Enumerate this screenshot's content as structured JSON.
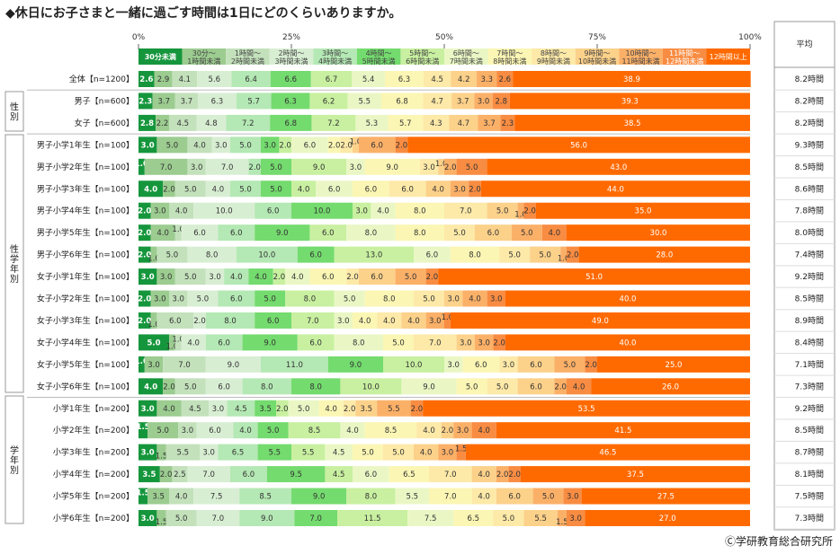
{
  "title": "◆休日にお子さまと一緒に過ごす時間は1日にどのくらいありますか。",
  "copyright": "Ⓒ学研教育総合研究所",
  "chart_data": {
    "type": "bar",
    "stacked": true,
    "orientation": "horizontal",
    "percent_axis_ticks": [
      "0%",
      "25%",
      "50%",
      "75%",
      "100%"
    ],
    "average_header": "平均",
    "categories_legend": [
      "30分未満",
      "30分～1時間未満",
      "1時間～2時間未満",
      "2時間～3時間未満",
      "3時間～4時間未満",
      "4時間～5時間未満",
      "5時間～6時間未満",
      "6時間～7時間未満",
      "7時間～8時間未満",
      "8時間～9時間未満",
      "9時間～10時間未満",
      "10時間～11時間未満",
      "11時間～12時間未満",
      "12時間以上"
    ],
    "legend_lines": [
      [
        "30分未満"
      ],
      [
        "30分～",
        "1時間未満"
      ],
      [
        "1時間～",
        "2時間未満"
      ],
      [
        "2時間～",
        "3時間未満"
      ],
      [
        "3時間～",
        "4時間未満"
      ],
      [
        "4時間～",
        "5時間未満"
      ],
      [
        "5時間～",
        "6時間未満"
      ],
      [
        "6時間～",
        "7時間未満"
      ],
      [
        "7時間～",
        "8時間未満"
      ],
      [
        "8時間～",
        "9時間未満"
      ],
      [
        "9時間～",
        "10時間未満"
      ],
      [
        "10時間～",
        "11時間未満"
      ],
      [
        "11時間～",
        "12時間未満"
      ],
      [
        "12時間以上"
      ]
    ],
    "colors": [
      "#16963c",
      "#9ccc90",
      "#c3e1bb",
      "#d8eed3",
      "#b4e8b4",
      "#74db6e",
      "#c8f0a0",
      "#eaf7c5",
      "#fbf6b4",
      "#fde9a8",
      "#fcd18a",
      "#fbb068",
      "#f88c42",
      "#ff6a00"
    ],
    "groups": [
      {
        "label": "",
        "rows": [
          {
            "label": "全体【n=1200】",
            "values": [
              2.6,
              2.9,
              4.1,
              5.6,
              6.4,
              6.6,
              6.7,
              5.4,
              6.3,
              4.5,
              4.2,
              3.3,
              2.6,
              38.9
            ],
            "avg": "8.2時間"
          }
        ]
      },
      {
        "label": "性別",
        "rows": [
          {
            "label": "男子【n=600】",
            "values": [
              2.3,
              3.7,
              3.7,
              6.3,
              5.7,
              6.3,
              6.2,
              5.5,
              6.8,
              4.7,
              3.7,
              3.0,
              2.8,
              39.3
            ],
            "avg": "8.2時間"
          },
          {
            "label": "女子【n=600】",
            "values": [
              2.8,
              2.2,
              4.5,
              4.8,
              7.2,
              6.8,
              7.2,
              5.3,
              5.7,
              4.3,
              4.7,
              3.7,
              2.3,
              38.5
            ],
            "avg": "8.2時間"
          }
        ]
      },
      {
        "label": "性学年別",
        "rows": [
          {
            "label": "男子小学1年生【n=100】",
            "values": [
              3.0,
              5.0,
              4.0,
              3.0,
              5.0,
              3.0,
              2.0,
              6.0,
              2.0,
              2.0,
              1.0,
              6.0,
              2.0,
              56.0
            ],
            "avg": "9.3時間"
          },
          {
            "label": "男子小学2年生【n=100】",
            "values": [
              1.0,
              7.0,
              3.0,
              7.0,
              2.0,
              5.0,
              9.0,
              3.0,
              9.0,
              3.0,
              1.0,
              2.0,
              5.0,
              43.0
            ],
            "avg": "8.5時間"
          },
          {
            "label": "男子小学3年生【n=100】",
            "values": [
              4.0,
              2.0,
              5.0,
              4.0,
              5.0,
              5.0,
              4.0,
              6.0,
              6.0,
              6.0,
              4.0,
              3.0,
              2.0,
              44.0
            ],
            "avg": "8.6時間"
          },
          {
            "label": "男子小学4年生【n=100】",
            "values": [
              2.0,
              3.0,
              4.0,
              10.0,
              6.0,
              10.0,
              3.0,
              4.0,
              8.0,
              7.0,
              5.0,
              1.0,
              2.0,
              35.0
            ],
            "avg": "7.8時間"
          },
          {
            "label": "男子小学5年生【n=100】",
            "values": [
              2.0,
              4.0,
              1.0,
              6.0,
              6.0,
              9.0,
              6.0,
              8.0,
              8.0,
              5.0,
              6.0,
              5.0,
              4.0,
              30.0
            ],
            "avg": "8.0時間"
          },
          {
            "label": "男子小学6年生【n=100】",
            "values": [
              2.0,
              1.0,
              5.0,
              8.0,
              10.0,
              6.0,
              13.0,
              6.0,
              8.0,
              5.0,
              5.0,
              1.0,
              2.0,
              28.0
            ],
            "avg": "7.4時間"
          },
          {
            "label": "女子小学1年生【n=100】",
            "values": [
              3.0,
              3.0,
              5.0,
              3.0,
              4.0,
              4.0,
              2.0,
              4.0,
              6.0,
              2.0,
              6.0,
              5.0,
              2.0,
              51.0
            ],
            "avg": "9.2時間"
          },
          {
            "label": "女子小学2年生【n=100】",
            "values": [
              2.0,
              3.0,
              3.0,
              5.0,
              6.0,
              5.0,
              8.0,
              5.0,
              8.0,
              5.0,
              3.0,
              4.0,
              3.0,
              40.0
            ],
            "avg": "8.5時間"
          },
          {
            "label": "女子小学3年生【n=100】",
            "values": [
              2.0,
              1.0,
              6.0,
              2.0,
              8.0,
              6.0,
              7.0,
              3.0,
              4.0,
              4.0,
              4.0,
              3.0,
              1.0,
              49.0
            ],
            "avg": "8.9時間"
          },
          {
            "label": "女子小学4年生【n=100】",
            "values": [
              5.0,
              1.0,
              1.0,
              4.0,
              6.0,
              9.0,
              6.0,
              8.0,
              5.0,
              7.0,
              3.0,
              3.0,
              2.0,
              40.0
            ],
            "avg": "8.4時間"
          },
          {
            "label": "女子小学5年生【n=100】",
            "values": [
              1.0,
              3.0,
              7.0,
              9.0,
              11.0,
              9.0,
              10.0,
              3.0,
              6.0,
              3.0,
              6.0,
              5.0,
              2.0,
              25.0
            ],
            "avg": "7.1時間"
          },
          {
            "label": "女子小学6年生【n=100】",
            "values": [
              4.0,
              2.0,
              5.0,
              6.0,
              8.0,
              8.0,
              10.0,
              9.0,
              5.0,
              5.0,
              6.0,
              2.0,
              4.0,
              26.0
            ],
            "avg": "7.3時間"
          }
        ]
      },
      {
        "label": "学年別",
        "rows": [
          {
            "label": "小学1年生【n=200】",
            "values": [
              3.0,
              4.0,
              4.5,
              3.0,
              4.5,
              3.5,
              2.0,
              5.0,
              4.0,
              2.0,
              3.5,
              5.5,
              2.0,
              53.5
            ],
            "avg": "9.2時間"
          },
          {
            "label": "小学2年生【n=200】",
            "values": [
              1.5,
              5.0,
              3.0,
              6.0,
              4.0,
              5.0,
              8.5,
              4.0,
              8.5,
              4.0,
              2.0,
              3.0,
              4.0,
              41.5
            ],
            "avg": "8.5時間"
          },
          {
            "label": "小学3年生【n=200】",
            "values": [
              3.0,
              1.5,
              5.5,
              3.0,
              6.5,
              5.5,
              5.5,
              4.5,
              5.0,
              5.0,
              4.0,
              3.0,
              1.5,
              46.5
            ],
            "avg": "8.7時間"
          },
          {
            "label": "小学4年生【n=200】",
            "values": [
              3.5,
              2.0,
              2.5,
              7.0,
              6.0,
              9.5,
              4.5,
              6.0,
              6.5,
              7.0,
              4.0,
              2.0,
              2.0,
              37.5
            ],
            "avg": "8.1時間"
          },
          {
            "label": "小学5年生【n=200】",
            "values": [
              1.5,
              3.5,
              4.0,
              7.5,
              8.5,
              9.0,
              8.0,
              5.5,
              7.0,
              4.0,
              6.0,
              5.0,
              3.0,
              27.5
            ],
            "avg": "7.5時間"
          },
          {
            "label": "小学6年生【n=200】",
            "values": [
              3.0,
              1.5,
              5.0,
              7.0,
              9.0,
              7.0,
              11.5,
              7.5,
              6.5,
              5.0,
              5.5,
              1.5,
              3.0,
              27.0
            ],
            "avg": "7.3時間"
          }
        ]
      }
    ]
  }
}
